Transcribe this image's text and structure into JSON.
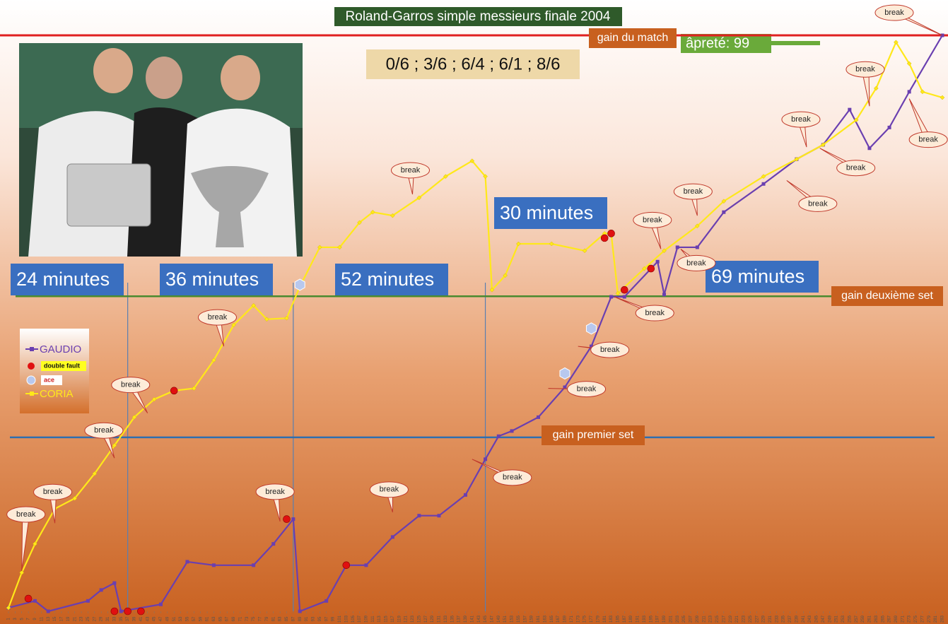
{
  "chart_data": {
    "type": "line",
    "title": "Roland-Garros simple messieurs finale 2004",
    "subtitle": "0/6 ; 3/6 ; 6/4 ; 6/1 ; 8/6",
    "badge": "âpreté: 99",
    "xlim": [
      1,
      283
    ],
    "ylim": [
      0,
      100
    ],
    "xticks": [
      1,
      3,
      5,
      7,
      9,
      11,
      13,
      15,
      17,
      19,
      21,
      23,
      25,
      27,
      29,
      31,
      33,
      35,
      37,
      39,
      41,
      43,
      45,
      47,
      49,
      51,
      53,
      55,
      57,
      59,
      61,
      63,
      65,
      67,
      69,
      71,
      73,
      75,
      77,
      79,
      81,
      83,
      85,
      87,
      89,
      91,
      93,
      95,
      97,
      99,
      101,
      103,
      105,
      107,
      109,
      111,
      113,
      115,
      117,
      119,
      121,
      123,
      125,
      127,
      129,
      131,
      133,
      135,
      137,
      139,
      141,
      143,
      145,
      147,
      149,
      151,
      153,
      155,
      157,
      159,
      161,
      163,
      165,
      167,
      169,
      171,
      173,
      175,
      177,
      179,
      181,
      183,
      185,
      187,
      189,
      191,
      193,
      195,
      197,
      199,
      201,
      203,
      205,
      207,
      209,
      211,
      213,
      215,
      217,
      219,
      221,
      223,
      225,
      227,
      229,
      231,
      233,
      235,
      237,
      239,
      241,
      243,
      245,
      247,
      249,
      251,
      253,
      255,
      257,
      259,
      261,
      263,
      265,
      267,
      269,
      271,
      273,
      275,
      277,
      279,
      281,
      283
    ],
    "series": [
      {
        "name": "GAUDIO",
        "color": "#6a3fb0",
        "x": [
          1,
          9,
          13,
          25,
          29,
          33,
          35,
          47,
          55,
          63,
          75,
          81,
          87,
          89,
          97,
          103,
          109,
          117,
          125,
          131,
          139,
          145,
          149,
          153,
          161,
          169,
          177,
          183,
          187,
          197,
          199,
          203,
          209,
          217,
          229,
          239,
          247,
          255,
          261,
          267,
          273,
          283
        ],
        "values": [
          0.6,
          1.8,
          0,
          1.8,
          3.7,
          4.9,
          0,
          1.2,
          8.6,
          8.0,
          8.0,
          11.7,
          16.0,
          0,
          1.8,
          8.0,
          8.0,
          12.9,
          16.6,
          16.6,
          20.2,
          26.4,
          30.4,
          31.3,
          33.7,
          38.9,
          46.0,
          54.6,
          54.6,
          60.7,
          55.0,
          63.2,
          63.2,
          69.3,
          74.2,
          78.5,
          81.0,
          87.1,
          80.4,
          84.0,
          90.2,
          100
        ]
      },
      {
        "name": "CORIA",
        "color": "#ffe81a",
        "x": [
          1,
          5,
          9,
          15,
          21,
          27,
          33,
          39,
          45,
          51,
          57,
          63,
          69,
          75,
          79,
          85,
          89,
          95,
          101,
          107,
          111,
          117,
          125,
          133,
          141,
          145,
          147,
          151,
          155,
          165,
          175,
          181,
          183,
          185,
          193,
          199,
          209,
          217,
          229,
          239,
          247,
          257,
          263,
          269,
          273,
          277,
          283
        ],
        "values": [
          0.6,
          6.7,
          11.7,
          17.8,
          19.6,
          23.9,
          28.8,
          33.7,
          36.8,
          38.3,
          38.7,
          43.6,
          49.7,
          53.1,
          50.7,
          50.9,
          56.4,
          63.2,
          63.2,
          67.5,
          69.3,
          68.7,
          71.8,
          75.5,
          78.2,
          75.5,
          55.8,
          58.3,
          63.8,
          63.8,
          62.6,
          65.6,
          65.6,
          55.2,
          59.5,
          62.6,
          66.9,
          71.2,
          75.5,
          78.5,
          81.0,
          85.3,
          90.8,
          98.8,
          95.1,
          90.2,
          89.2
        ]
      }
    ],
    "markers": [
      {
        "name": "double fault",
        "color": "#e01010",
        "x": [
          7,
          33,
          37,
          41,
          51,
          85,
          103,
          181,
          183,
          187,
          195
        ],
        "values": [
          2.2,
          0,
          0,
          0,
          38.3,
          16.0,
          8.0,
          64.8,
          65.6,
          55.8,
          59.5
        ]
      },
      {
        "name": "ace",
        "color": "#b8c8ee",
        "x": [
          89,
          169,
          177
        ],
        "values": [
          56.7,
          41.3,
          49.1
        ]
      }
    ],
    "reference_lines": [
      {
        "label": "gain du match",
        "value": 100,
        "color": "#e02020"
      },
      {
        "label": "gain deuxième set",
        "value": 54.7,
        "color": "#4a8a30"
      },
      {
        "label": "gain premier set",
        "value": 30.2,
        "color": "#2f6fb0"
      }
    ],
    "time_labels": [
      "24 minutes",
      "36 minutes",
      "52 minutes",
      "30 minutes",
      "69 minutes"
    ],
    "vlines": [
      37,
      87,
      145
    ],
    "annotations": [
      {
        "text": "break",
        "x": 5,
        "y": 7.0
      },
      {
        "text": "break",
        "x": 15,
        "y": 15.3
      },
      {
        "text": "break",
        "x": 33,
        "y": 26.6
      },
      {
        "text": "break",
        "x": 43,
        "y": 34.4
      },
      {
        "text": "break",
        "x": 66,
        "y": 46.0
      },
      {
        "text": "break",
        "x": 83,
        "y": 15.6
      },
      {
        "text": "break",
        "x": 117,
        "y": 17.2
      },
      {
        "text": "break",
        "x": 123,
        "y": 72.4
      },
      {
        "text": "break",
        "x": 141,
        "y": 26.4
      },
      {
        "text": "break",
        "x": 164,
        "y": 38.7
      },
      {
        "text": "break",
        "x": 173,
        "y": 46.0
      },
      {
        "text": "break",
        "x": 184,
        "y": 54.6
      },
      {
        "text": "break",
        "x": 198,
        "y": 62.9
      },
      {
        "text": "break",
        "x": 204,
        "y": 62.9
      },
      {
        "text": "break",
        "x": 209,
        "y": 68.7
      },
      {
        "text": "break",
        "x": 242,
        "y": 80.6
      },
      {
        "text": "break",
        "x": 236,
        "y": 74.8
      },
      {
        "text": "break",
        "x": 246,
        "y": 80.4
      },
      {
        "text": "break",
        "x": 261,
        "y": 87.7
      },
      {
        "text": "break",
        "x": 273,
        "y": 89.0
      },
      {
        "text": "break",
        "x": 283,
        "y": 100
      }
    ]
  }
}
